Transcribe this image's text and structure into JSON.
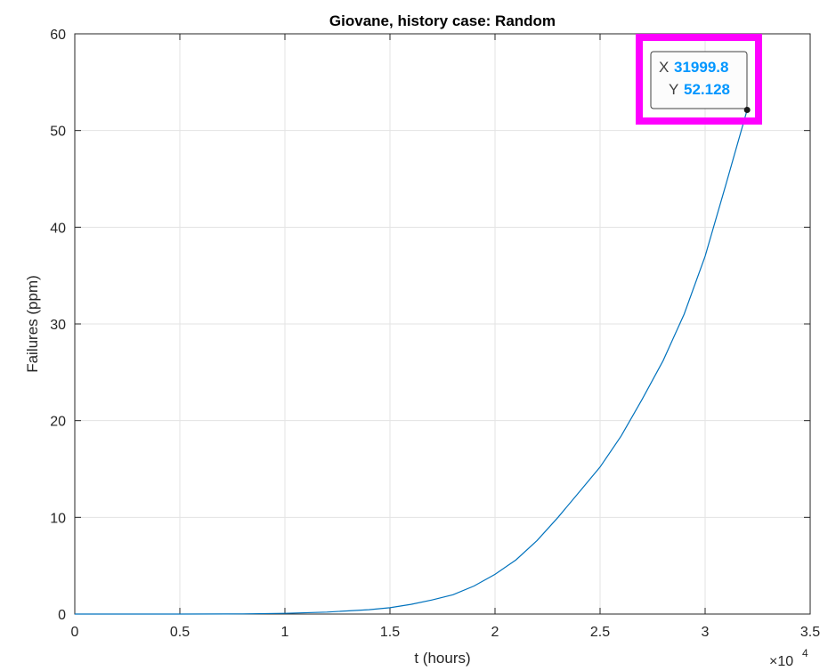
{
  "chart_data": {
    "type": "line",
    "title": "Giovane, history case: Random",
    "xlabel": "t (hours)",
    "ylabel": "Failures (ppm)",
    "x_exponent_label": "×10",
    "x_exponent_power": "4",
    "xlim": [
      0,
      35000
    ],
    "ylim": [
      0,
      60
    ],
    "x_ticks": [
      0,
      5000,
      10000,
      15000,
      20000,
      25000,
      30000,
      35000
    ],
    "x_tick_labels": [
      "0",
      "0.5",
      "1",
      "1.5",
      "2",
      "2.5",
      "3",
      "3.5"
    ],
    "y_ticks": [
      0,
      10,
      20,
      30,
      40,
      50,
      60
    ],
    "y_tick_labels": [
      "0",
      "10",
      "20",
      "30",
      "40",
      "50",
      "60"
    ],
    "grid": true,
    "series": [
      {
        "color": "#0072BD",
        "x": [
          0,
          5000,
          8000,
          10000,
          12000,
          14000,
          15000,
          16000,
          17000,
          18000,
          19000,
          20000,
          21000,
          22000,
          23000,
          24000,
          25000,
          26000,
          27000,
          28000,
          29000,
          30000,
          31000,
          31999.8
        ],
        "y": [
          0,
          0,
          0.02,
          0.07,
          0.2,
          0.45,
          0.65,
          1.0,
          1.45,
          2.0,
          2.9,
          4.1,
          5.6,
          7.6,
          10.0,
          12.6,
          15.2,
          18.4,
          22.2,
          26.2,
          31.0,
          37.0,
          44.5,
          52.128
        ]
      }
    ],
    "datatip": {
      "x_label": "X",
      "x_value": "31999.8",
      "y_label": "Y",
      "y_value": "52.128"
    },
    "highlight_color": "#FF00FF",
    "datatip_value_color": "#0096FF"
  }
}
